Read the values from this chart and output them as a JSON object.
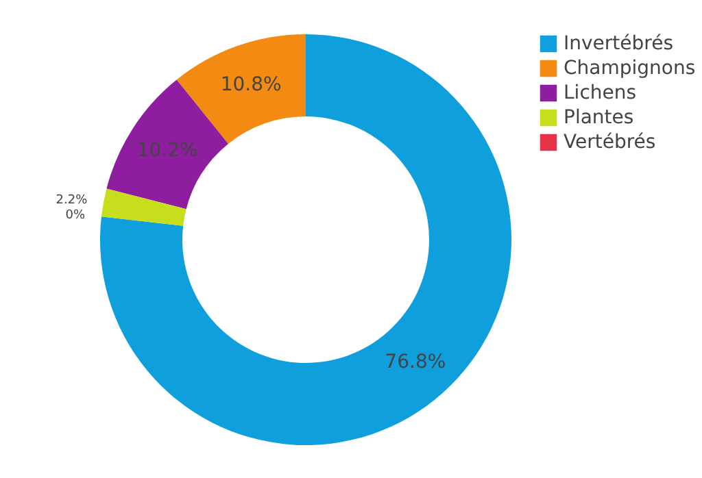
{
  "chart_data": {
    "type": "donut",
    "categories": [
      "Invertébrés",
      "Champignons",
      "Lichens",
      "Plantes",
      "Vertébrés"
    ],
    "values": [
      76.8,
      10.8,
      10.2,
      2.2,
      0
    ],
    "value_labels": [
      "76.8%",
      "10.8%",
      "10.2%",
      "2.2%",
      "0%"
    ],
    "colors": [
      "#0e9fdc",
      "#f38b12",
      "#8e1e9f",
      "#c6de1c",
      "#e3324a"
    ],
    "legend": "top right"
  }
}
